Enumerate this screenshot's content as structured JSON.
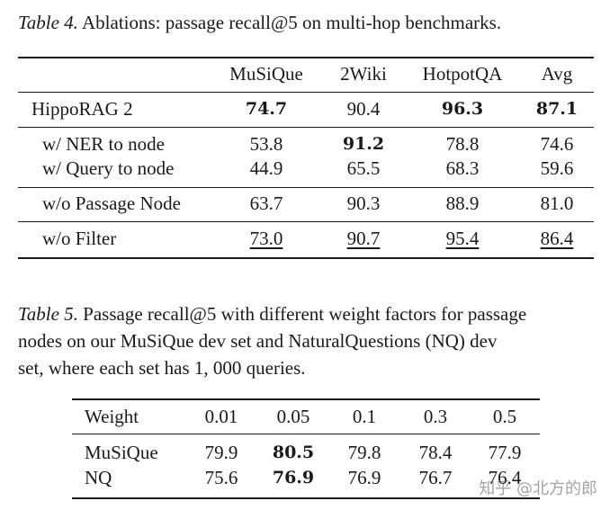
{
  "table4": {
    "caption_lead": "Table 4.",
    "caption_text": " Ablations: passage recall@5 on multi-hop benchmarks.",
    "headers": [
      "",
      "MuSiQue",
      "2Wiki",
      "HotpotQA",
      "Avg"
    ],
    "rows": [
      {
        "label": "HippoRAG 2",
        "values": [
          "74.7",
          "90.4",
          "96.3",
          "87.1"
        ]
      },
      {
        "label": "w/ NER to node",
        "values": [
          "53.8",
          "91.2",
          "78.8",
          "74.6"
        ]
      },
      {
        "label": "w/ Query to node",
        "values": [
          "44.9",
          "65.5",
          "68.3",
          "59.6"
        ]
      },
      {
        "label": "w/o Passage Node",
        "values": [
          "63.7",
          "90.3",
          "88.9",
          "81.0"
        ]
      },
      {
        "label": "w/o Filter",
        "values": [
          "73.0",
          "90.7",
          "95.4",
          "86.4"
        ]
      }
    ]
  },
  "table5": {
    "caption_lead": "Table 5.",
    "caption_line1": " Passage recall@5 with different weight factors for passage",
    "caption_line2": "nodes on our MuSiQue dev set and NaturalQuestions (NQ) dev",
    "caption_line3": "set, where each set has 1, 000 queries.",
    "headers": [
      "Weight",
      "0.01",
      "0.05",
      "0.1",
      "0.3",
      "0.5"
    ],
    "rows": [
      {
        "label": "MuSiQue",
        "values": [
          "79.9",
          "80.5",
          "79.8",
          "78.4",
          "77.9"
        ]
      },
      {
        "label": "NQ",
        "values": [
          "75.6",
          "76.9",
          "76.9",
          "76.7",
          "76.4"
        ]
      }
    ]
  },
  "watermark": "知乎 @北方的郎"
}
